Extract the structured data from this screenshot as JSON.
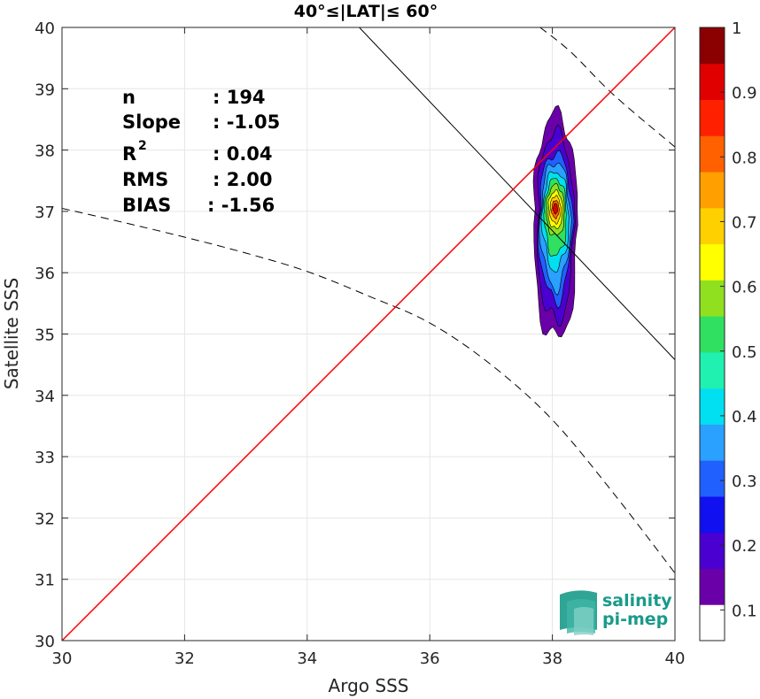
{
  "chart_data": {
    "type": "heatmap",
    "title": "40°≤|LAT|≤ 60°",
    "xlabel": "Argo SSS",
    "ylabel": "Satellite SSS",
    "xlim": [
      30,
      40
    ],
    "ylim": [
      30,
      40
    ],
    "xticks": [
      "30",
      "32",
      "34",
      "36",
      "38",
      "40"
    ],
    "yticks": [
      "30",
      "31",
      "32",
      "33",
      "34",
      "35",
      "36",
      "37",
      "38",
      "39",
      "40"
    ],
    "grid": true,
    "stats": [
      {
        "label": "n",
        "value": ": 194"
      },
      {
        "label": "Slope",
        "value": ": -1.05"
      },
      {
        "label": "R",
        "sup": "2",
        "value": ": 0.04"
      },
      {
        "label": "RMS",
        "value": ": 2.00"
      },
      {
        "label": "BIAS",
        "value": ": -1.56"
      }
    ],
    "identity_line": {
      "color": "#ff0000",
      "points": [
        [
          30,
          30
        ],
        [
          40,
          40
        ]
      ]
    },
    "fit_line": {
      "color": "#000000",
      "slope": -1.05,
      "points": [
        [
          34.85,
          40
        ],
        [
          40,
          34.58
        ]
      ]
    },
    "confidence_lower": [
      [
        30,
        37.05
      ],
      [
        31,
        36.82
      ],
      [
        32,
        36.58
      ],
      [
        33,
        36.32
      ],
      [
        34,
        36.02
      ],
      [
        35,
        35.62
      ],
      [
        36,
        35.18
      ],
      [
        37,
        34.5
      ],
      [
        38,
        33.6
      ],
      [
        39,
        32.4
      ],
      [
        40,
        31.1
      ]
    ],
    "confidence_upper": [
      [
        37.8,
        40
      ],
      [
        38.3,
        39.6
      ],
      [
        39,
        38.9
      ],
      [
        40,
        38.05
      ]
    ],
    "density_peak": {
      "x": 38.05,
      "y": 37.05
    },
    "contour_levels": [
      0.05,
      0.1,
      0.2,
      0.3,
      0.4,
      0.5,
      0.6,
      0.7,
      0.8,
      0.9,
      1.0
    ],
    "colorbar": {
      "ticks": [
        "0.1",
        "0.2",
        "0.3",
        "0.4",
        "0.5",
        "0.6",
        "0.7",
        "0.8",
        "0.9",
        "1"
      ],
      "colors": [
        "#ffffff",
        "#6a00a8",
        "#4a00d0",
        "#1010f0",
        "#2060ff",
        "#2aa0ff",
        "#00e0f0",
        "#20f0b0",
        "#30e060",
        "#90e020",
        "#ffff00",
        "#ffd000",
        "#ffa000",
        "#ff6000",
        "#ff2000",
        "#e00000",
        "#8b0000"
      ]
    }
  },
  "logo": {
    "line1": "salinity",
    "line2": "pi-mep"
  }
}
